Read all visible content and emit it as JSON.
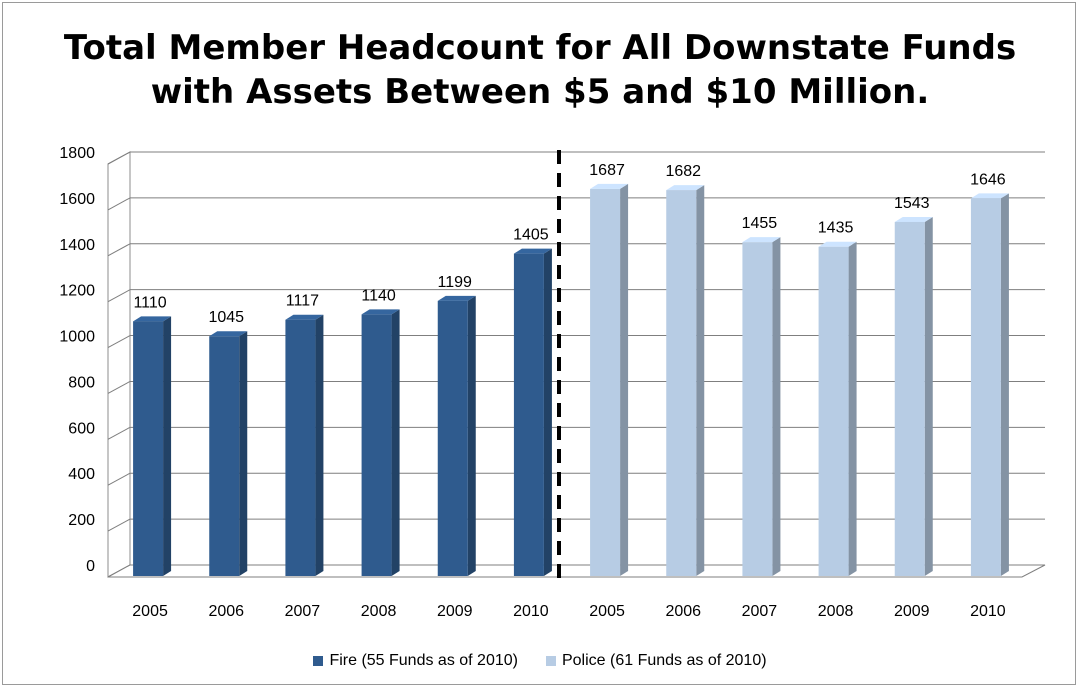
{
  "chart_data": {
    "type": "bar",
    "title_lines": [
      "Total Member Headcount for All Downstate Funds",
      "with Assets Between $5 and $10 Million."
    ],
    "xlabel": "",
    "ylabel": "",
    "ylim": [
      0,
      1800
    ],
    "yticks": [
      0,
      200,
      400,
      600,
      800,
      1000,
      1200,
      1400,
      1600,
      1800
    ],
    "grid": true,
    "legend_position": "bottom",
    "categories": [
      "2005",
      "2006",
      "2007",
      "2008",
      "2009",
      "2010",
      "2005",
      "2006",
      "2007",
      "2008",
      "2009",
      "2010"
    ],
    "series": [
      {
        "name": "Fire (55 Funds as of 2010)",
        "color": "#2f5b8e",
        "values": [
          1110,
          1045,
          1117,
          1140,
          1199,
          1405,
          null,
          null,
          null,
          null,
          null,
          null
        ]
      },
      {
        "name": "Police (61 Funds as of 2010)",
        "color": "#b7cce4",
        "values": [
          null,
          null,
          null,
          null,
          null,
          null,
          1687,
          1682,
          1455,
          1435,
          1543,
          1646
        ]
      }
    ],
    "divider": "dashed vertical line between the two groups"
  }
}
